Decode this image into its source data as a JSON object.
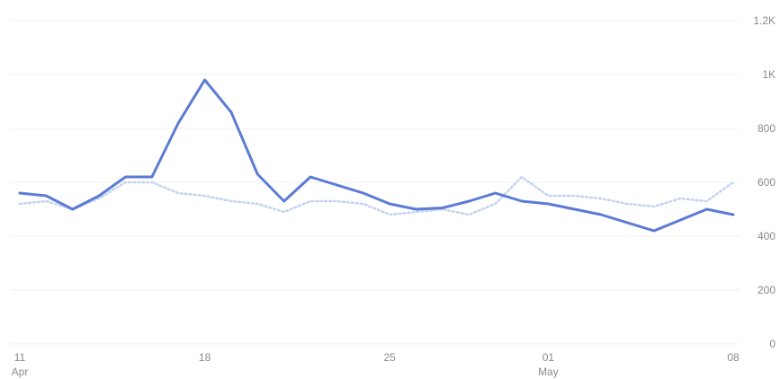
{
  "chart_data": {
    "type": "line",
    "grid": true,
    "legend": "none",
    "x_labels": [
      {
        "index": 0,
        "day": "11",
        "month": "Apr"
      },
      {
        "index": 7,
        "day": "18",
        "month": ""
      },
      {
        "index": 14,
        "day": "25",
        "month": ""
      },
      {
        "index": 20,
        "day": "01",
        "month": "May"
      },
      {
        "index": 27,
        "day": "08",
        "month": ""
      }
    ],
    "y_ticks": [
      {
        "value": 0,
        "label": "0"
      },
      {
        "value": 200,
        "label": "200"
      },
      {
        "value": 400,
        "label": "400"
      },
      {
        "value": 600,
        "label": "600"
      },
      {
        "value": 800,
        "label": "800"
      },
      {
        "value": 1000,
        "label": "1K"
      },
      {
        "value": 1200,
        "label": "1.2K"
      }
    ],
    "ylim": [
      0,
      1200
    ],
    "x_count": 28,
    "series": [
      {
        "color": "#5b7bd5",
        "style": "solid",
        "values": [
          560,
          550,
          500,
          550,
          620,
          620,
          820,
          980,
          860,
          630,
          530,
          620,
          590,
          560,
          520,
          500,
          505,
          530,
          560,
          530,
          520,
          500,
          480,
          450,
          420,
          460,
          500,
          480
        ]
      },
      {
        "color": "#c5d2f1",
        "style": "dotted",
        "values": [
          520,
          530,
          500,
          540,
          600,
          600,
          560,
          550,
          530,
          520,
          490,
          530,
          530,
          520,
          480,
          490,
          500,
          480,
          520,
          620,
          550,
          550,
          540,
          520,
          510,
          540,
          530,
          600
        ]
      }
    ]
  }
}
